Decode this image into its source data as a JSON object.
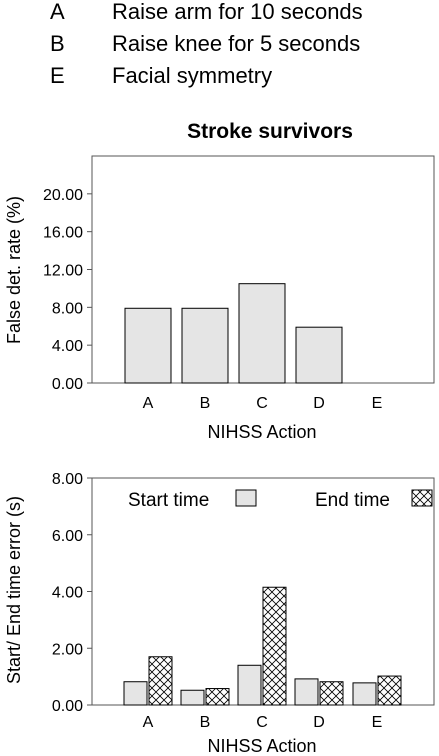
{
  "action_legend": [
    {
      "key": "A",
      "label": "Raise arm for 10 seconds"
    },
    {
      "key": "B",
      "label": "Raise knee for 5 seconds"
    },
    {
      "key": "E",
      "label": "Facial symmetry"
    }
  ],
  "chart_data": [
    {
      "type": "bar",
      "title": "Stroke survivors",
      "xlabel": "NIHSS Action",
      "ylabel": "False det. rate (%)",
      "categories": [
        "A",
        "B",
        "C",
        "D",
        "E"
      ],
      "values": [
        7.9,
        7.9,
        10.5,
        5.9,
        0
      ],
      "ylim": [
        0,
        24
      ],
      "yticks": [
        "0.00",
        "4.00",
        "8.00",
        "12.00",
        "16.00",
        "20.00"
      ],
      "grid": false,
      "bar_color": "#e5e5e5"
    },
    {
      "type": "bar",
      "title": "",
      "xlabel": "NIHSS Action",
      "ylabel": "Start/ End time error (s)",
      "categories": [
        "A",
        "B",
        "C",
        "D",
        "E"
      ],
      "series": [
        {
          "name": "Start time",
          "values": [
            0.82,
            0.52,
            1.4,
            0.92,
            0.78
          ],
          "fill": "solid"
        },
        {
          "name": "End time",
          "values": [
            1.7,
            0.58,
            4.15,
            0.82,
            1.02
          ],
          "fill": "crosshatch"
        }
      ],
      "ylim": [
        0,
        8
      ],
      "yticks": [
        "0.00",
        "2.00",
        "4.00",
        "6.00",
        "8.00"
      ],
      "legend": "top",
      "grid": false
    }
  ]
}
